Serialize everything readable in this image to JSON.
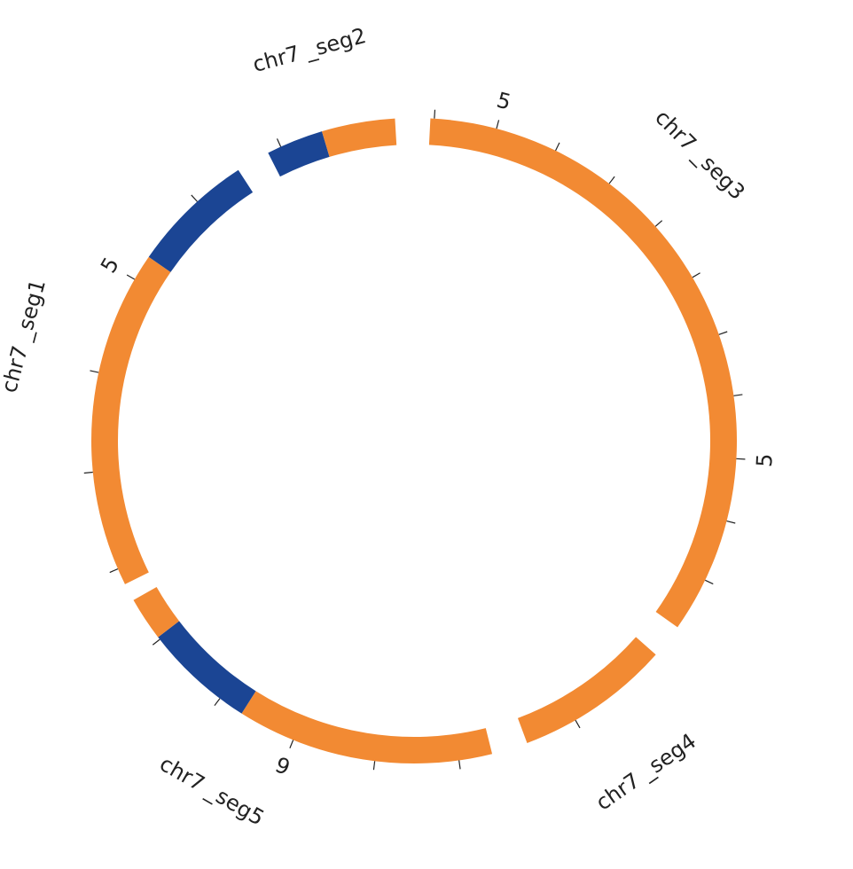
{
  "colors": {
    "orange": "#F28A33",
    "blue": "#1B4594",
    "text": "#222222",
    "background": "#FFFFFF"
  },
  "segments": [
    {
      "id": "seg1",
      "label": "chr7 _seg1",
      "start_deg": 243.6,
      "end_deg": 327.0,
      "bands": [
        {
          "color": "orange",
          "from": 243.6,
          "to": 304.7
        },
        {
          "color": "blue",
          "from": 304.7,
          "to": 327.0
        }
      ],
      "label_deg": 285.0,
      "ticks": [
        246.6,
        264.4,
        282.2,
        300.0,
        317.8
      ],
      "tick_labels": [
        {
          "deg": 300.0,
          "text": "5"
        }
      ]
    },
    {
      "id": "seg2",
      "label": "chr7 _seg2",
      "start_deg": 333.1,
      "end_deg": 356.6,
      "bands": [
        {
          "color": "blue",
          "from": 333.1,
          "to": 343.4
        },
        {
          "color": "orange",
          "from": 343.4,
          "to": 356.6
        }
      ],
      "label_deg": 345.0,
      "ticks": [
        335.6
      ],
      "tick_labels": []
    },
    {
      "id": "seg3",
      "label": "chr7 _seg3",
      "start_deg": 2.9,
      "end_deg": 125.3,
      "bands": [
        {
          "color": "orange",
          "from": 2.9,
          "to": 125.3
        }
      ],
      "label_deg": 45.0,
      "ticks": [
        3.6,
        14.8,
        26.0,
        37.2,
        48.4,
        59.6,
        70.8,
        82.0,
        93.2,
        104.4,
        115.6
      ],
      "tick_labels": [
        {
          "deg": 14.8,
          "text": "5"
        },
        {
          "deg": 93.2,
          "text": "5"
        }
      ]
    },
    {
      "id": "seg4",
      "label": "chr7 _seg4",
      "start_deg": 131.5,
      "end_deg": 159.5,
      "bands": [
        {
          "color": "orange",
          "from": 131.5,
          "to": 159.5
        }
      ],
      "label_deg": 145.0,
      "ticks": [
        150.0
      ],
      "tick_labels": []
    },
    {
      "id": "seg5",
      "label": "chr7 _seg5",
      "start_deg": 166.0,
      "end_deg": 240.4,
      "bands": [
        {
          "color": "orange",
          "from": 166.0,
          "to": 212.3
        },
        {
          "color": "blue",
          "from": 212.3,
          "to": 232.5
        },
        {
          "color": "orange",
          "from": 232.5,
          "to": 240.4
        }
      ],
      "label_deg": 210.0,
      "ticks": [
        172.0,
        187.0,
        202.0,
        217.0,
        232.0
      ],
      "tick_labels": [
        {
          "deg": 202.0,
          "text": "9"
        }
      ]
    }
  ]
}
